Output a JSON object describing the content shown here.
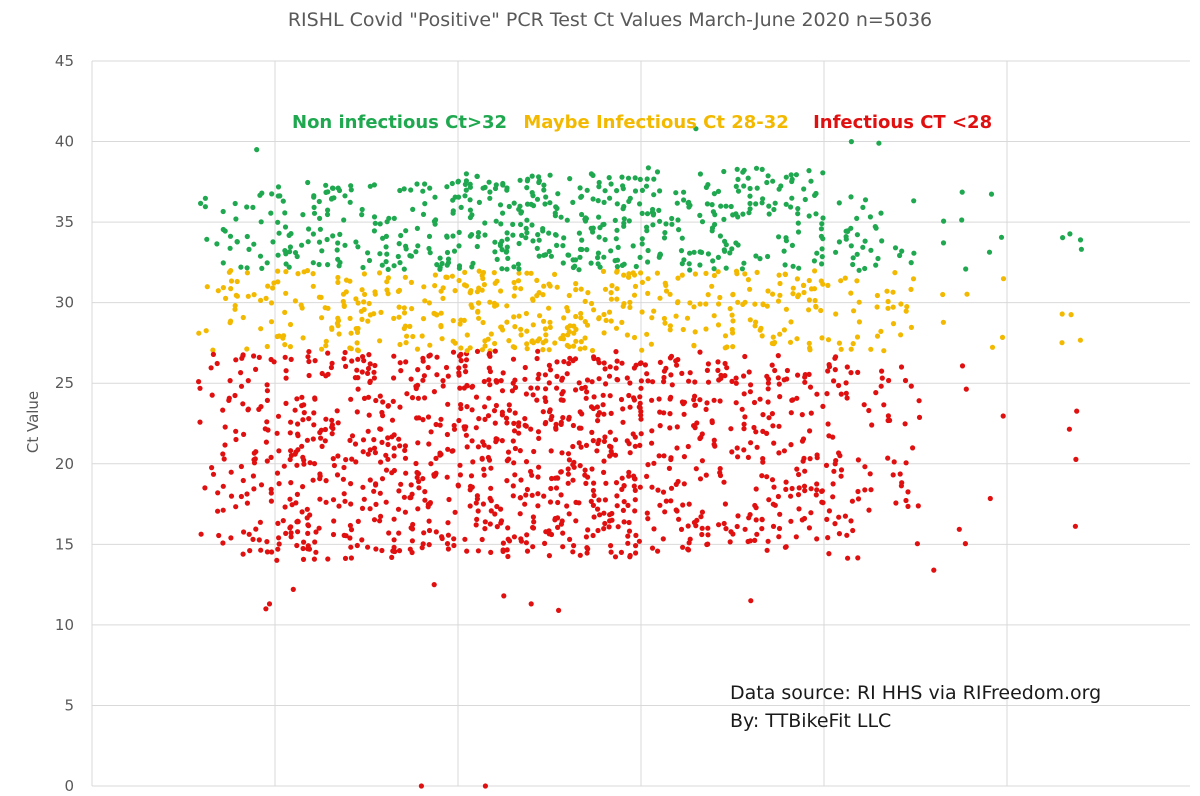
{
  "chart_data": {
    "type": "scatter",
    "title": "RISHL Covid \"Positive\" PCR Test Ct Values March-June 2020 n=5036",
    "xlabel": "",
    "ylabel": "Ct Value",
    "ylim": [
      0,
      45
    ],
    "yticks": [
      0,
      5,
      10,
      15,
      20,
      25,
      30,
      35,
      40,
      45
    ],
    "xlim": [
      0,
      60
    ],
    "x_gridlines": [
      10,
      20,
      30,
      40,
      50
    ],
    "grid": true,
    "band_labels": [
      {
        "text": "Non infectious Ct>32",
        "color": "#1fa84f"
      },
      {
        "text": "Maybe Infectious Ct 28-32",
        "color": "#f2b900"
      },
      {
        "text": "Infectious CT <28",
        "color": "#e01010"
      }
    ],
    "series": [
      {
        "color": "#1fa84f",
        "range": [
          32,
          40
        ]
      },
      {
        "color": "#f2b900",
        "range": [
          27,
          32
        ]
      },
      {
        "color": "#e01010",
        "range": [
          0,
          27
        ]
      }
    ],
    "annotations": [
      "Data source: RI HHS via RIFreedom.org",
      "By: TTBikeFit LLC"
    ]
  }
}
